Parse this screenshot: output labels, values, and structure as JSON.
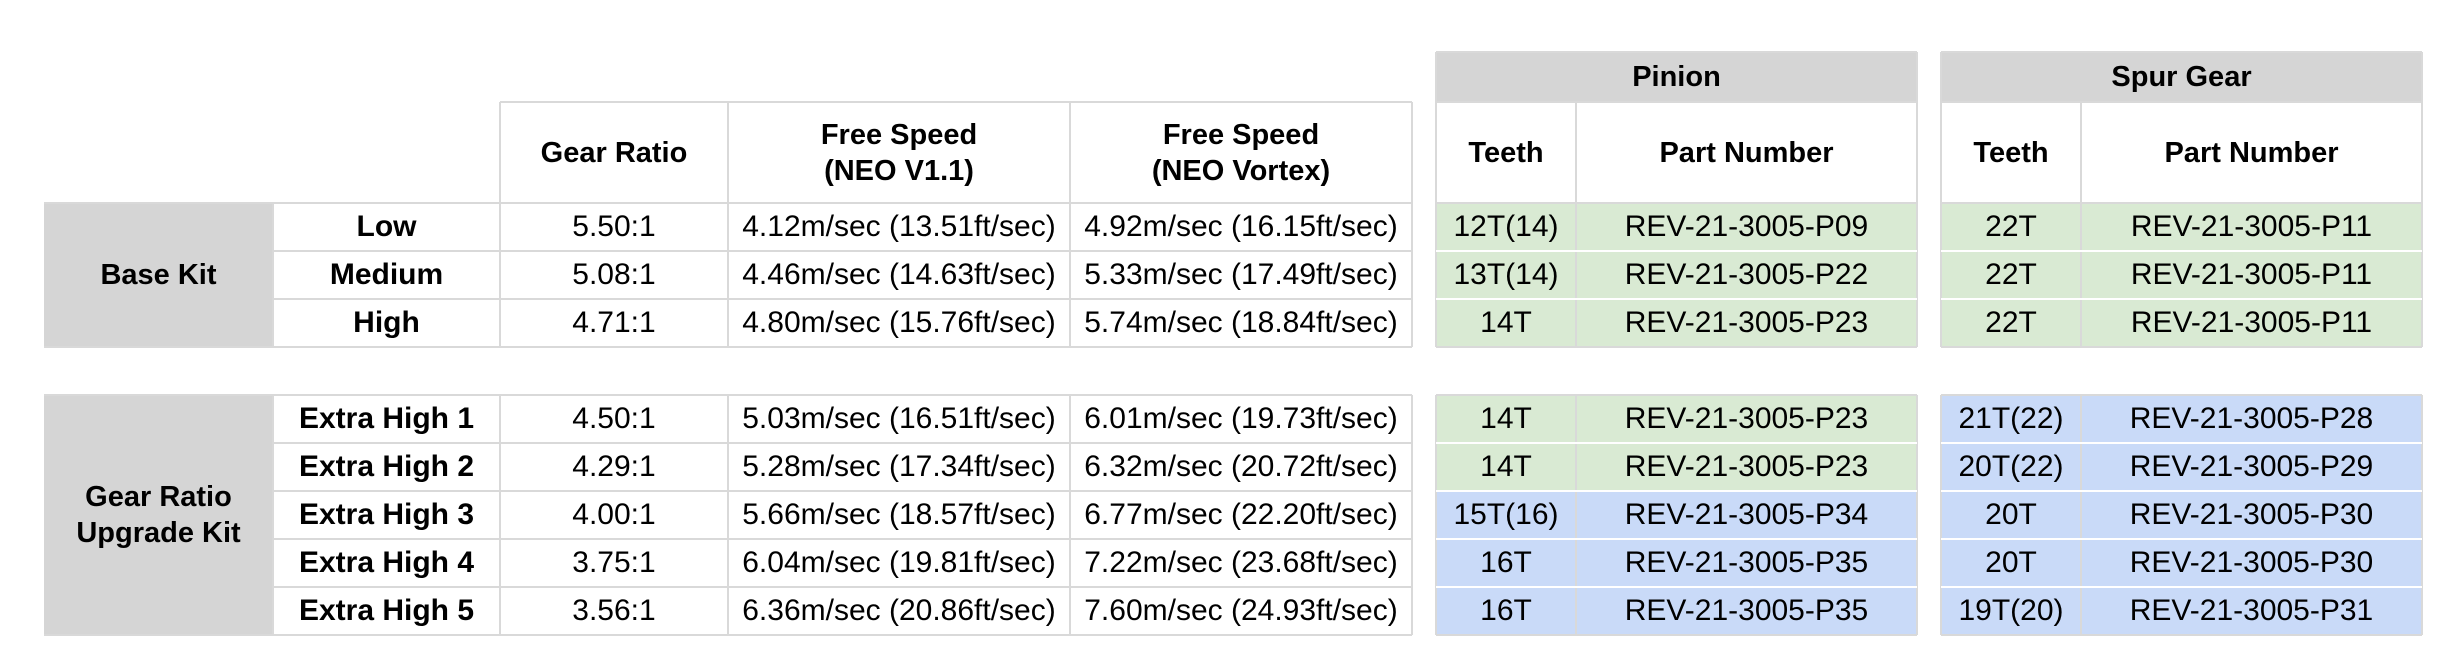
{
  "header": {
    "gear_ratio": "Gear Ratio",
    "free_speed_v11": "Free Speed\n(NEO V1.1)",
    "free_speed_vortex": "Free Speed\n(NEO Vortex)",
    "pinion": "Pinion",
    "spur_gear": "Spur Gear",
    "pinion_teeth": "Teeth",
    "pinion_part": "Part Number",
    "spur_teeth": "Teeth",
    "spur_part": "Part Number"
  },
  "groups": [
    {
      "label": "Base Kit"
    },
    {
      "label": "Gear Ratio\nUpgrade Kit"
    }
  ],
  "rows": [
    {
      "name": "Low",
      "ratio": "5.50:1",
      "v11": "4.12m/sec (13.51ft/sec)",
      "vortex": "4.92m/sec (16.15ft/sec)",
      "pinion_teeth": "12T(14)",
      "pinion_part": "REV-21-3005-P09",
      "spur_teeth": "22T",
      "spur_part": "REV-21-3005-P11"
    },
    {
      "name": "Medium",
      "ratio": "5.08:1",
      "v11": "4.46m/sec (14.63ft/sec)",
      "vortex": "5.33m/sec (17.49ft/sec)",
      "pinion_teeth": "13T(14)",
      "pinion_part": "REV-21-3005-P22",
      "spur_teeth": "22T",
      "spur_part": "REV-21-3005-P11"
    },
    {
      "name": "High",
      "ratio": "4.71:1",
      "v11": "4.80m/sec (15.76ft/sec)",
      "vortex": "5.74m/sec (18.84ft/sec)",
      "pinion_teeth": "14T",
      "pinion_part": "REV-21-3005-P23",
      "spur_teeth": "22T",
      "spur_part": "REV-21-3005-P11"
    },
    {
      "name": "Extra High 1",
      "ratio": "4.50:1",
      "v11": "5.03m/sec (16.51ft/sec)",
      "vortex": "6.01m/sec (19.73ft/sec)",
      "pinion_teeth": "14T",
      "pinion_part": "REV-21-3005-P23",
      "spur_teeth": "21T(22)",
      "spur_part": "REV-21-3005-P28"
    },
    {
      "name": "Extra High 2",
      "ratio": "4.29:1",
      "v11": "5.28m/sec (17.34ft/sec)",
      "vortex": "6.32m/sec (20.72ft/sec)",
      "pinion_teeth": "14T",
      "pinion_part": "REV-21-3005-P23",
      "spur_teeth": "20T(22)",
      "spur_part": "REV-21-3005-P29"
    },
    {
      "name": "Extra High 3",
      "ratio": "4.00:1",
      "v11": "5.66m/sec (18.57ft/sec)",
      "vortex": "6.77m/sec (22.20ft/sec)",
      "pinion_teeth": "15T(16)",
      "pinion_part": "REV-21-3005-P34",
      "spur_teeth": "20T",
      "spur_part": "REV-21-3005-P30"
    },
    {
      "name": "Extra High 4",
      "ratio": "3.75:1",
      "v11": "6.04m/sec (19.81ft/sec)",
      "vortex": "7.22m/sec (23.68ft/sec)",
      "pinion_teeth": "16T",
      "pinion_part": "REV-21-3005-P35",
      "spur_teeth": "20T",
      "spur_part": "REV-21-3005-P30"
    },
    {
      "name": "Extra High 5",
      "ratio": "3.56:1",
      "v11": "6.36m/sec (20.86ft/sec)",
      "vortex": "7.60m/sec (24.93ft/sec)",
      "pinion_teeth": "16T",
      "pinion_part": "REV-21-3005-P35",
      "spur_teeth": "19T(20)",
      "spur_part": "REV-21-3005-P31"
    }
  ],
  "colors": {
    "grey": "#d5d5d5",
    "green": "#d9ead3",
    "blue": "#c9daf8"
  },
  "row_colors": {
    "pinion": [
      "green",
      "green",
      "green",
      "green",
      "green",
      "blue",
      "blue",
      "blue"
    ],
    "spur": [
      "green",
      "green",
      "green",
      "blue",
      "blue",
      "blue",
      "blue",
      "blue"
    ]
  }
}
